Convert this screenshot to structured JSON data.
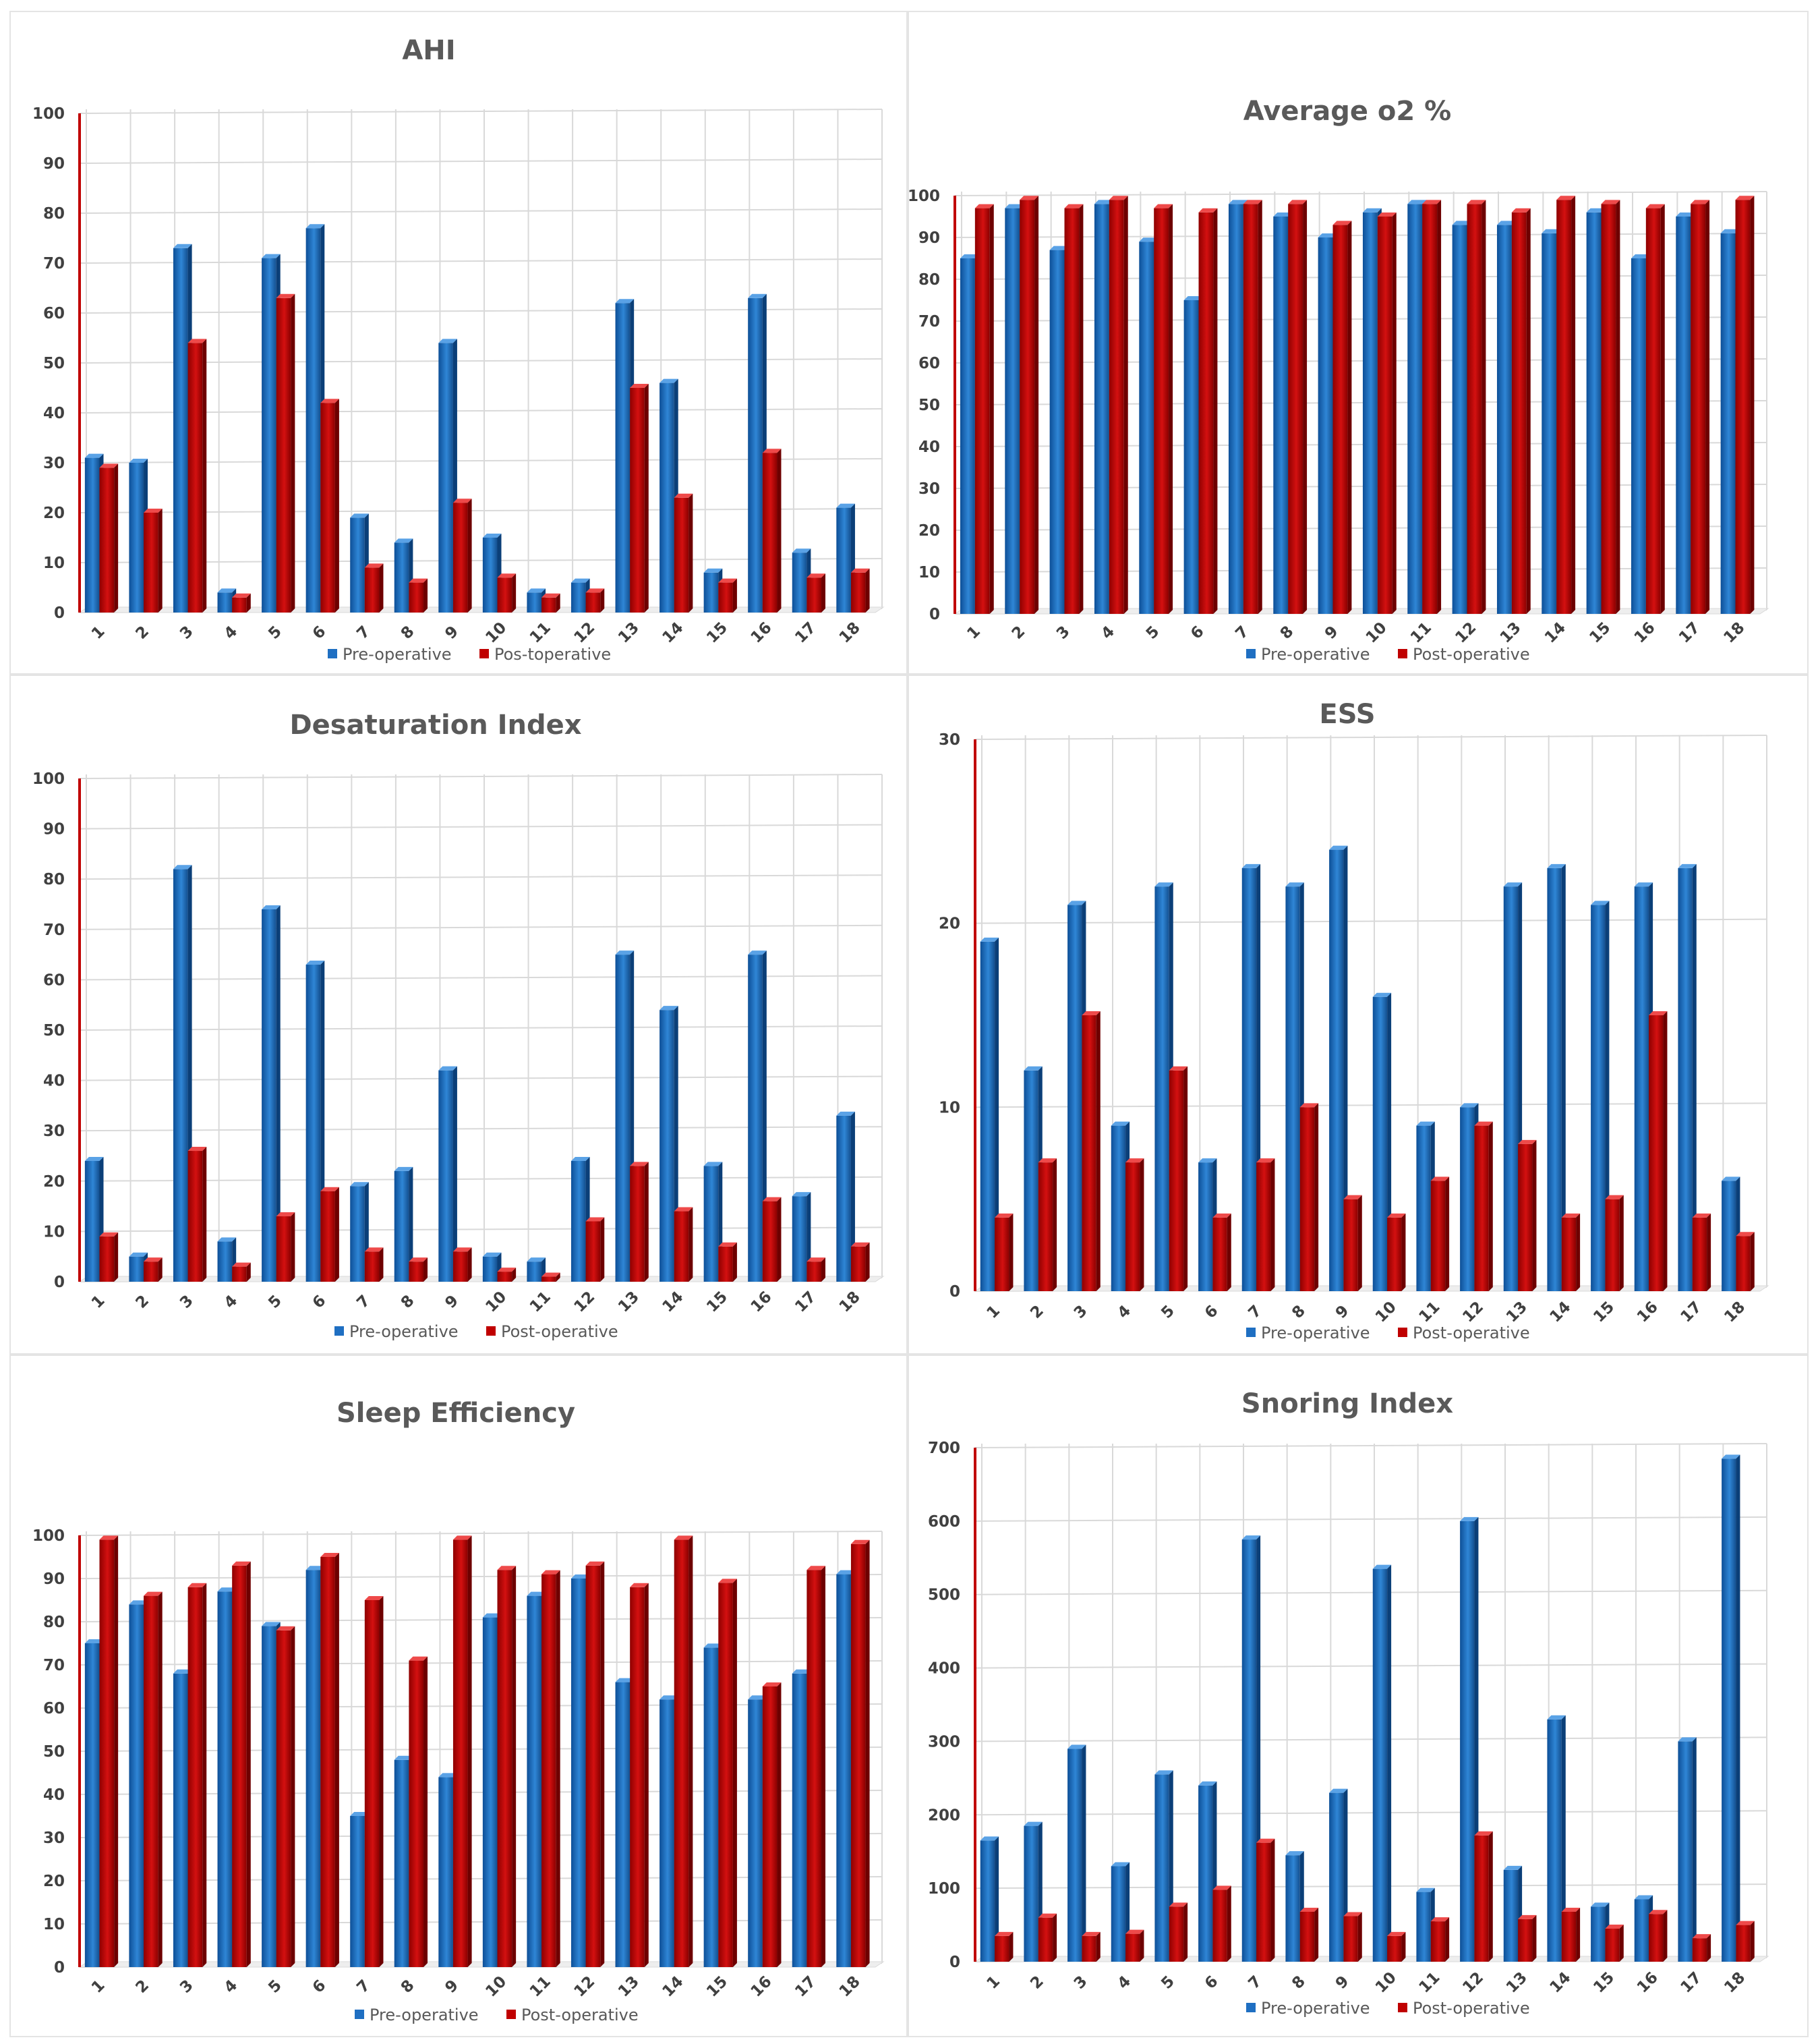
{
  "colors": {
    "pre": "#1f6fc2",
    "post": "#c00000",
    "grid": "#d9d9d9",
    "axis": "#c00000"
  },
  "chart_data": [
    {
      "type": "bar",
      "title": "AHI",
      "categories": [
        "1",
        "2",
        "3",
        "4",
        "5",
        "6",
        "7",
        "8",
        "9",
        "10",
        "11",
        "12",
        "13",
        "14",
        "15",
        "16",
        "17",
        "18"
      ],
      "yticks": [
        "0",
        "10",
        "20",
        "30",
        "40",
        "50",
        "60",
        "70",
        "80",
        "90",
        "100"
      ],
      "ylim": [
        0,
        100
      ],
      "series": [
        {
          "name": "Pre-operative",
          "values": [
            31,
            30,
            73,
            4,
            71,
            77,
            19,
            14,
            54,
            15,
            4,
            6,
            62,
            46,
            8,
            63,
            12,
            21
          ]
        },
        {
          "name": "Pos-toperative",
          "values": [
            29,
            20,
            54,
            3,
            63,
            42,
            9,
            6,
            22,
            7,
            3,
            4,
            45,
            23,
            6,
            32,
            7,
            8
          ]
        }
      ],
      "legend": "bottom"
    },
    {
      "type": "bar",
      "title": "Average o2 %",
      "categories": [
        "1",
        "2",
        "3",
        "4",
        "5",
        "6",
        "7",
        "8",
        "9",
        "10",
        "11",
        "12",
        "13",
        "14",
        "15",
        "16",
        "17",
        "18"
      ],
      "yticks": [
        "0",
        "10",
        "20",
        "30",
        "40",
        "50",
        "60",
        "70",
        "80",
        "90",
        "100"
      ],
      "ylim": [
        0,
        100
      ],
      "series": [
        {
          "name": "Pre-operative",
          "values": [
            85,
            97,
            87,
            98,
            89,
            75,
            98,
            95,
            90,
            96,
            98,
            93,
            93,
            91,
            96,
            85,
            95,
            91
          ]
        },
        {
          "name": "Post-operative",
          "values": [
            97,
            99,
            97,
            99,
            97,
            96,
            98,
            98,
            93,
            95,
            98,
            98,
            96,
            99,
            98,
            97,
            98,
            99
          ]
        }
      ],
      "legend": "bottom"
    },
    {
      "type": "bar",
      "title": "Desaturation Index",
      "categories": [
        "1",
        "2",
        "3",
        "4",
        "5",
        "6",
        "7",
        "8",
        "9",
        "10",
        "11",
        "12",
        "13",
        "14",
        "15",
        "16",
        "17",
        "18"
      ],
      "yticks": [
        "0",
        "10",
        "20",
        "30",
        "40",
        "50",
        "60",
        "70",
        "80",
        "90",
        "100"
      ],
      "ylim": [
        0,
        100
      ],
      "series": [
        {
          "name": "Pre-operative",
          "values": [
            24,
            5,
            82,
            8,
            74,
            63,
            19,
            22,
            42,
            5,
            4,
            24,
            65,
            54,
            23,
            65,
            17,
            33
          ]
        },
        {
          "name": "Post-operative",
          "values": [
            9,
            4,
            26,
            3,
            13,
            18,
            6,
            4,
            6,
            2,
            1,
            12,
            23,
            14,
            7,
            16,
            4,
            7
          ]
        }
      ],
      "legend": "bottom"
    },
    {
      "type": "bar",
      "title": "ESS",
      "categories": [
        "1",
        "2",
        "3",
        "4",
        "5",
        "6",
        "7",
        "8",
        "9",
        "10",
        "11",
        "12",
        "13",
        "14",
        "15",
        "16",
        "17",
        "18"
      ],
      "yticks": [
        "0",
        "10",
        "20",
        "30"
      ],
      "ylim": [
        0,
        30
      ],
      "series": [
        {
          "name": "Pre-operative",
          "values": [
            19,
            12,
            21,
            9,
            22,
            7,
            23,
            22,
            24,
            16,
            9,
            10,
            22,
            23,
            21,
            22,
            23,
            6
          ]
        },
        {
          "name": "Post-operative",
          "values": [
            4,
            7,
            15,
            7,
            12,
            4,
            7,
            10,
            5,
            4,
            6,
            9,
            8,
            4,
            5,
            15,
            4,
            3
          ]
        }
      ],
      "legend": "bottom"
    },
    {
      "type": "bar",
      "title": "Sleep Efficiency",
      "categories": [
        "1",
        "2",
        "3",
        "4",
        "5",
        "6",
        "7",
        "8",
        "9",
        "10",
        "11",
        "12",
        "13",
        "14",
        "15",
        "16",
        "17",
        "18"
      ],
      "yticks": [
        "0",
        "10",
        "20",
        "30",
        "40",
        "50",
        "60",
        "70",
        "80",
        "90",
        "100"
      ],
      "ylim": [
        0,
        100
      ],
      "series": [
        {
          "name": "Pre-operative",
          "values": [
            75,
            84,
            68,
            87,
            79,
            92,
            35,
            48,
            44,
            81,
            86,
            90,
            66,
            62,
            74,
            62,
            68,
            91
          ]
        },
        {
          "name": "Post-operative",
          "values": [
            99,
            86,
            88,
            93,
            78,
            95,
            85,
            71,
            99,
            92,
            91,
            93,
            88,
            99,
            89,
            65,
            92,
            98
          ]
        }
      ],
      "legend": "bottom"
    },
    {
      "type": "bar",
      "title": "Snoring Index",
      "categories": [
        "1",
        "2",
        "3",
        "4",
        "5",
        "6",
        "7",
        "8",
        "9",
        "10",
        "11",
        "12",
        "13",
        "14",
        "15",
        "16",
        "17",
        "18"
      ],
      "yticks": [
        "0",
        "100",
        "200",
        "300",
        "400",
        "500",
        "600",
        "700"
      ],
      "ylim": [
        0,
        700
      ],
      "series": [
        {
          "name": "Pre-operative",
          "values": [
            165,
            185,
            290,
            130,
            255,
            240,
            575,
            145,
            230,
            535,
            95,
            600,
            125,
            330,
            75,
            85,
            300,
            685
          ]
        },
        {
          "name": "Post-operative",
          "values": [
            35,
            60,
            35,
            38,
            75,
            98,
            162,
            68,
            62,
            35,
            55,
            172,
            58,
            68,
            45,
            65,
            32,
            50
          ]
        }
      ],
      "legend": "bottom"
    }
  ]
}
